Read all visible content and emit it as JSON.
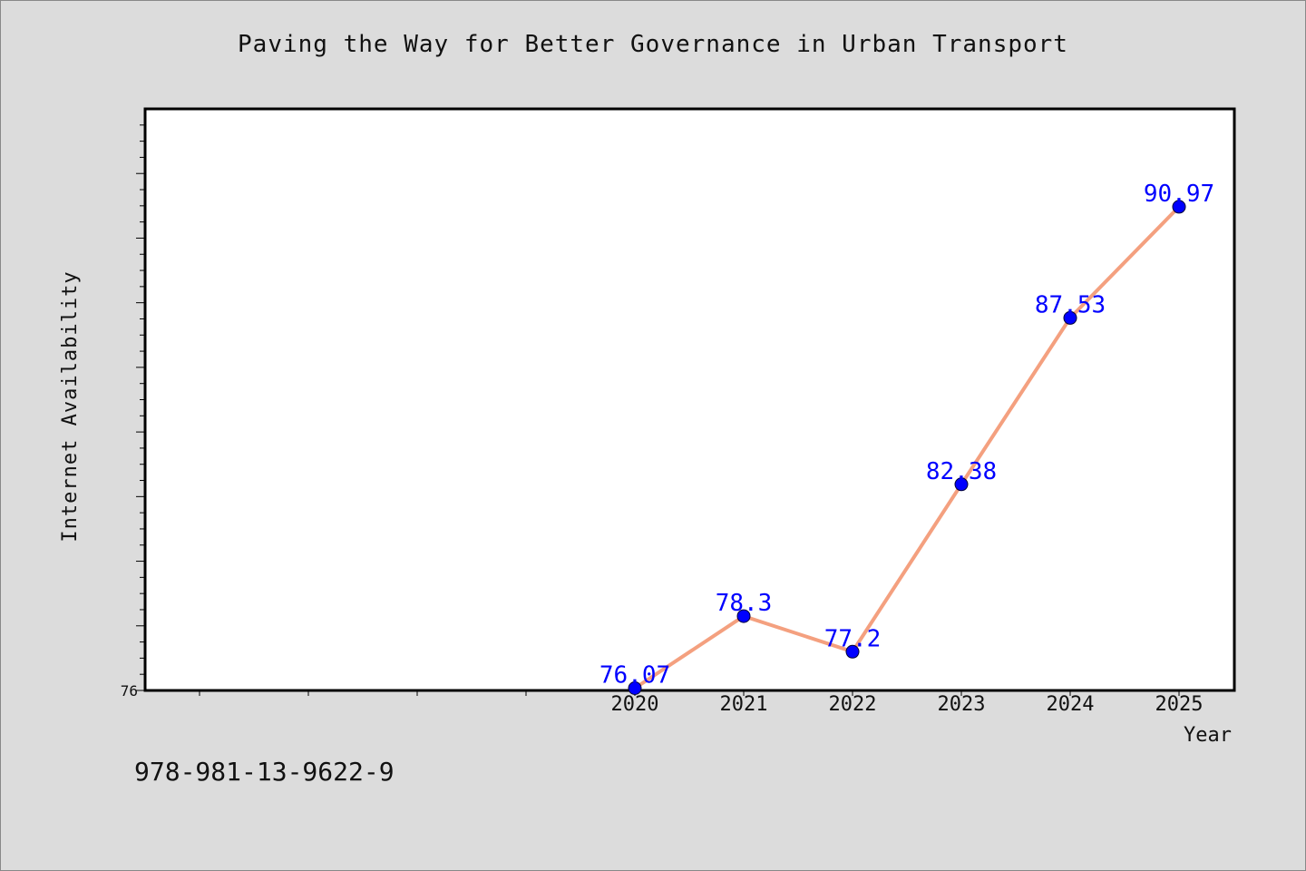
{
  "page": {
    "isbn": "978-981-13-9622-9"
  },
  "chart_data": {
    "type": "line",
    "title": "Paving the Way for Better Governance in Urban Transport",
    "xlabel": "Year",
    "ylabel": "Internet Availability",
    "x": [
      "2020",
      "2021",
      "2022",
      "2023",
      "2024",
      "2025"
    ],
    "x_numeric": [
      2020,
      2021,
      2022,
      2023,
      2024,
      2025
    ],
    "xlim": [
      2015.5,
      2025.5
    ],
    "y_tick_labels": [
      "76"
    ],
    "ylim": [
      76,
      94
    ],
    "series": [
      {
        "values": [
          76.07,
          78.3,
          77.2,
          82.38,
          87.53,
          90.97
        ],
        "data_labels": [
          "76.07",
          "78.3",
          "77.2",
          "82.38",
          "87.53",
          "90.97"
        ]
      }
    ],
    "line_color": "#f4a07f",
    "marker_color": "#0000ff",
    "label_color": "#0000ff",
    "grid": false,
    "legend": false
  }
}
